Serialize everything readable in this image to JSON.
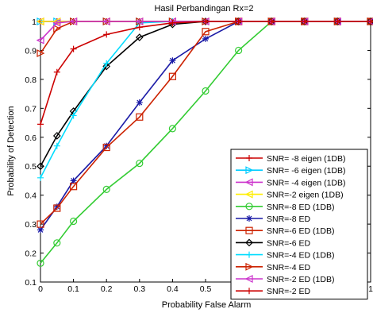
{
  "chart_data": {
    "type": "line",
    "title": "Hasil Perbandingan Rx=2",
    "xlabel": "Probability False Alarm",
    "ylabel": "Probability of Detection",
    "xlim": [
      0,
      1
    ],
    "ylim": [
      0.1,
      1
    ],
    "xticks": [
      "0",
      "0.1",
      "0.2",
      "0.3",
      "0.4",
      "0.5",
      "0.6",
      "0.7",
      "0.8",
      "0.9",
      "1"
    ],
    "yticks": [
      "0.1",
      "0.2",
      "0.3",
      "0.4",
      "0.5",
      "0.6",
      "0.7",
      "0.8",
      "0.9",
      "1"
    ],
    "grid": false,
    "legend_position": "bottom-right",
    "series": [
      {
        "name": "SNR= -8 eigen (1DB)",
        "color": "#cc0000",
        "marker": "plus",
        "points": [
          [
            0,
            1
          ],
          [
            0.05,
            1
          ],
          [
            0.1,
            1
          ],
          [
            0.2,
            1
          ],
          [
            0.3,
            1
          ],
          [
            0.4,
            1
          ],
          [
            0.5,
            1
          ],
          [
            0.6,
            1
          ],
          [
            0.7,
            1
          ],
          [
            0.8,
            1
          ],
          [
            0.9,
            1
          ],
          [
            1,
            1
          ]
        ]
      },
      {
        "name": "SNR= -6 eigen (1DB)",
        "color": "#00ccff",
        "marker": "triangle-right",
        "points": [
          [
            0,
            1
          ],
          [
            0.05,
            1
          ],
          [
            0.1,
            1
          ],
          [
            0.2,
            1
          ],
          [
            0.3,
            1
          ],
          [
            0.4,
            1
          ],
          [
            0.5,
            1
          ],
          [
            0.6,
            1
          ],
          [
            0.7,
            1
          ],
          [
            0.8,
            1
          ],
          [
            0.9,
            1
          ],
          [
            1,
            1
          ]
        ]
      },
      {
        "name": "SNR= -4 eigen (1DB)",
        "color": "#cc33cc",
        "marker": "triangle-left",
        "points": [
          [
            0,
            1
          ],
          [
            0.05,
            1
          ],
          [
            0.1,
            1
          ],
          [
            0.2,
            1
          ],
          [
            0.3,
            1
          ],
          [
            0.4,
            1
          ],
          [
            0.5,
            1
          ],
          [
            0.6,
            1
          ],
          [
            0.7,
            1
          ],
          [
            0.8,
            1
          ],
          [
            0.9,
            1
          ],
          [
            1,
            1
          ]
        ]
      },
      {
        "name": "SNR=-2 eigen (1DB)",
        "color": "#ffee00",
        "marker": "triangle-left",
        "points": [
          [
            0,
            1
          ],
          [
            0.05,
            1
          ],
          [
            0.1,
            1
          ],
          [
            0.2,
            1
          ],
          [
            0.3,
            1
          ],
          [
            0.4,
            1
          ],
          [
            0.5,
            1
          ],
          [
            0.6,
            1
          ],
          [
            0.7,
            1
          ],
          [
            0.8,
            1
          ],
          [
            0.9,
            1
          ],
          [
            1,
            1
          ]
        ]
      },
      {
        "name": "SNR=-8 ED (1DB)",
        "color": "#33cc33",
        "marker": "circle",
        "points": [
          [
            0,
            0.165
          ],
          [
            0.05,
            0.235
          ],
          [
            0.1,
            0.31
          ],
          [
            0.2,
            0.42
          ],
          [
            0.3,
            0.51
          ],
          [
            0.4,
            0.63
          ],
          [
            0.5,
            0.76
          ],
          [
            0.6,
            0.9
          ],
          [
            0.7,
            1
          ],
          [
            0.8,
            1
          ],
          [
            0.9,
            1
          ],
          [
            1,
            1
          ]
        ]
      },
      {
        "name": "SNR=-8 ED",
        "color": "#1a1aa6",
        "marker": "star",
        "points": [
          [
            0,
            0.28
          ],
          [
            0.05,
            0.36
          ],
          [
            0.1,
            0.45
          ],
          [
            0.2,
            0.57
          ],
          [
            0.3,
            0.72
          ],
          [
            0.4,
            0.865
          ],
          [
            0.5,
            0.94
          ],
          [
            0.6,
            1
          ],
          [
            0.7,
            1
          ],
          [
            0.8,
            1
          ],
          [
            0.9,
            1
          ],
          [
            1,
            1
          ]
        ]
      },
      {
        "name": "SNR=-6 ED (1DB)",
        "color": "#cc2200",
        "marker": "square",
        "points": [
          [
            0,
            0.3
          ],
          [
            0.05,
            0.355
          ],
          [
            0.1,
            0.43
          ],
          [
            0.2,
            0.565
          ],
          [
            0.3,
            0.67
          ],
          [
            0.4,
            0.81
          ],
          [
            0.5,
            0.965
          ],
          [
            0.6,
            1
          ],
          [
            0.7,
            1
          ],
          [
            0.8,
            1
          ],
          [
            0.9,
            1
          ],
          [
            1,
            1
          ]
        ]
      },
      {
        "name": "SNR=-6 ED",
        "color": "#000000",
        "marker": "diamond",
        "points": [
          [
            0,
            0.5
          ],
          [
            0.05,
            0.605
          ],
          [
            0.1,
            0.69
          ],
          [
            0.2,
            0.845
          ],
          [
            0.3,
            0.945
          ],
          [
            0.4,
            0.99
          ],
          [
            0.5,
            1
          ],
          [
            0.6,
            1
          ],
          [
            0.7,
            1
          ],
          [
            0.8,
            1
          ],
          [
            0.9,
            1
          ],
          [
            1,
            1
          ]
        ]
      },
      {
        "name": "SNR=-4 ED (1DB)",
        "color": "#00ddff",
        "marker": "plus",
        "points": [
          [
            0,
            0.46
          ],
          [
            0.05,
            0.57
          ],
          [
            0.1,
            0.675
          ],
          [
            0.2,
            0.855
          ],
          [
            0.3,
            0.995
          ],
          [
            0.4,
            1
          ],
          [
            0.5,
            1
          ],
          [
            0.6,
            1
          ],
          [
            0.7,
            1
          ],
          [
            0.8,
            1
          ],
          [
            0.9,
            1
          ],
          [
            1,
            1
          ]
        ]
      },
      {
        "name": "SNR=-4 ED",
        "color": "#cc2200",
        "marker": "triangle-right",
        "points": [
          [
            0,
            0.89
          ],
          [
            0.05,
            0.975
          ],
          [
            0.1,
            1
          ],
          [
            0.2,
            1
          ],
          [
            0.3,
            1
          ],
          [
            0.4,
            1
          ],
          [
            0.5,
            1
          ],
          [
            0.6,
            1
          ],
          [
            0.7,
            1
          ],
          [
            0.8,
            1
          ],
          [
            0.9,
            1
          ],
          [
            1,
            1
          ]
        ]
      },
      {
        "name": "SNR=-2 ED (1DB)",
        "color": "#cc33cc",
        "marker": "triangle-left",
        "points": [
          [
            0,
            0.935
          ],
          [
            0.05,
            0.995
          ],
          [
            0.1,
            1
          ],
          [
            0.2,
            1
          ],
          [
            0.3,
            1
          ],
          [
            0.4,
            1
          ],
          [
            0.5,
            1
          ],
          [
            0.6,
            1
          ],
          [
            0.7,
            1
          ],
          [
            0.8,
            1
          ],
          [
            0.9,
            1
          ],
          [
            1,
            1
          ]
        ]
      },
      {
        "name": "SNR=-2 ED",
        "color": "#cc0000",
        "marker": "plus",
        "points": [
          [
            0,
            0.645
          ],
          [
            0.05,
            0.825
          ],
          [
            0.1,
            0.905
          ],
          [
            0.2,
            0.955
          ],
          [
            0.3,
            0.98
          ],
          [
            0.4,
            0.995
          ],
          [
            0.5,
            1
          ],
          [
            0.6,
            1
          ],
          [
            0.7,
            1
          ],
          [
            0.8,
            1
          ],
          [
            0.9,
            1
          ],
          [
            1,
            1
          ]
        ]
      }
    ]
  }
}
